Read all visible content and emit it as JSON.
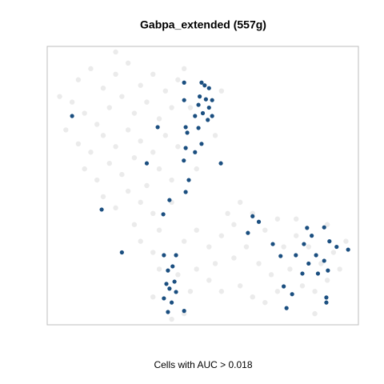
{
  "chart_data": {
    "type": "scatter",
    "title": "Gabpa_extended (557g)",
    "xlabel": "Cells with AUC > 0.018",
    "xlim": [
      0,
      100
    ],
    "ylim": [
      0,
      100
    ],
    "series": [
      {
        "color": "#e6e6e6",
        "x": [
          10,
          14,
          18,
          22,
          26,
          30,
          34,
          38,
          8,
          12,
          16,
          20,
          24,
          28,
          32,
          36,
          40,
          42,
          6,
          10,
          14,
          18,
          22,
          26,
          30,
          34,
          38,
          42,
          12,
          16,
          20,
          24,
          28,
          32,
          36,
          40,
          18,
          22,
          26,
          30,
          34,
          28,
          44,
          46,
          56,
          54,
          48,
          22,
          4,
          40,
          30,
          34,
          36,
          42,
          44,
          48,
          52,
          56,
          60,
          64,
          68,
          72,
          76,
          80,
          84,
          88,
          92,
          96,
          60,
          66,
          70,
          74,
          78,
          82,
          86,
          90,
          94,
          48,
          52,
          56,
          62,
          66,
          70,
          74,
          44,
          40,
          34,
          58,
          62,
          90,
          80,
          54,
          46,
          36,
          86
        ],
        "y": [
          88,
          92,
          85,
          90,
          94,
          86,
          90,
          84,
          80,
          76,
          72,
          78,
          82,
          76,
          80,
          74,
          78,
          88,
          70,
          65,
          62,
          68,
          64,
          70,
          66,
          62,
          68,
          64,
          56,
          52,
          58,
          54,
          60,
          50,
          56,
          52,
          46,
          42,
          48,
          44,
          40,
          36,
          92,
          78,
          84,
          68,
          56,
          98,
          82,
          44,
          30,
          26,
          20,
          18,
          30,
          34,
          28,
          32,
          24,
          28,
          22,
          18,
          28,
          32,
          28,
          22,
          26,
          30,
          36,
          40,
          34,
          38,
          20,
          14,
          12,
          16,
          20,
          20,
          16,
          12,
          14,
          10,
          8,
          12,
          4,
          2,
          10,
          40,
          44,
          36,
          38,
          22,
          12,
          34,
          4
        ]
      },
      {
        "color": "#1b4f80",
        "x": [
          8,
          44,
          49.6,
          50.6,
          52,
          49,
          51,
          53,
          44,
          48.6,
          52,
          50,
          47.5,
          51.6,
          53,
          44.5,
          48.6,
          45,
          35.5,
          49.6,
          44.5,
          47.5,
          43.9,
          55.8,
          32,
          45.5,
          44.5,
          39.3,
          17.5,
          37.3,
          66,
          68,
          64.5,
          72.5,
          83.5,
          89,
          85,
          90.7,
          82.5,
          93,
          96.7,
          79.9,
          86.4,
          89,
          75,
          84,
          90.2,
          87,
          82,
          24,
          37.5,
          41.4,
          40.3,
          38.8,
          38.3,
          40.9,
          39.3,
          41.4,
          37.5,
          40,
          38.8,
          44,
          76,
          78.7,
          76.9,
          89.7,
          89.7
        ],
        "y": [
          75,
          87,
          87,
          86,
          85,
          82,
          81,
          80.7,
          80.7,
          79,
          78,
          76,
          75,
          73.6,
          75,
          71,
          70.7,
          69,
          71,
          65,
          63.5,
          62,
          59,
          58,
          58,
          52,
          47.7,
          44.8,
          41.4,
          39.7,
          39,
          37,
          33,
          29,
          34.8,
          35,
          32,
          30,
          29,
          28,
          27,
          25,
          25,
          23,
          24.7,
          22,
          19.5,
          18.4,
          18.4,
          26,
          25,
          25,
          21,
          19.5,
          14.7,
          15.5,
          13,
          11.8,
          9.5,
          8,
          4.6,
          5,
          13.8,
          11,
          6,
          9.8,
          8
        ]
      }
    ]
  }
}
